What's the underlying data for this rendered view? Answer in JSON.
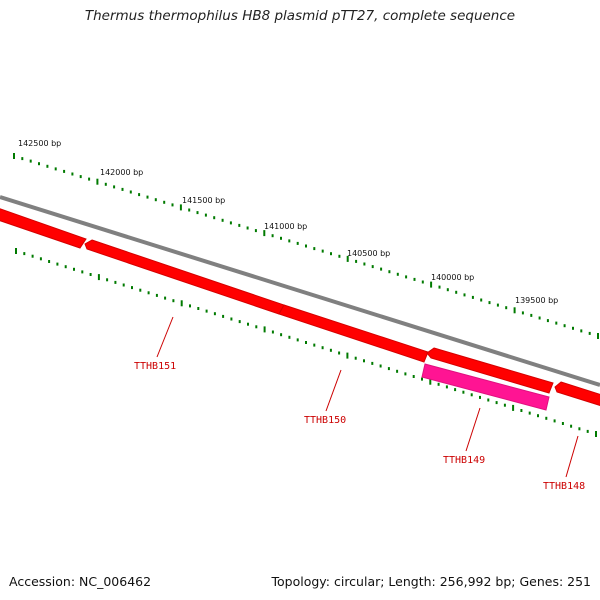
{
  "title": "Thermus thermophilus HB8 plasmid pTT27, complete sequence",
  "footer": {
    "accession": "Accession: NC_006462",
    "stats": "Topology: circular; Length: 256,992 bp; Genes: 251"
  },
  "axis": {
    "unit": "bp",
    "labels": [
      "142500 bp",
      "142000 bp",
      "141500 bp",
      "141000 bp",
      "140500 bp",
      "140000 bp",
      "139500 bp"
    ]
  },
  "genes": [
    {
      "name": "TTHB151",
      "color": "#ff0000"
    },
    {
      "name": "TTHB150",
      "color": "#ff0000"
    },
    {
      "name": "TTHB149",
      "color": "#ff1493"
    },
    {
      "name": "TTHB148",
      "color": "#ff0000"
    }
  ],
  "colors": {
    "backbone": "#808080",
    "ticks": "#007a00",
    "forward_gene": "#ff0000",
    "highlight_gene": "#ff1493",
    "label": "#cc0000"
  }
}
